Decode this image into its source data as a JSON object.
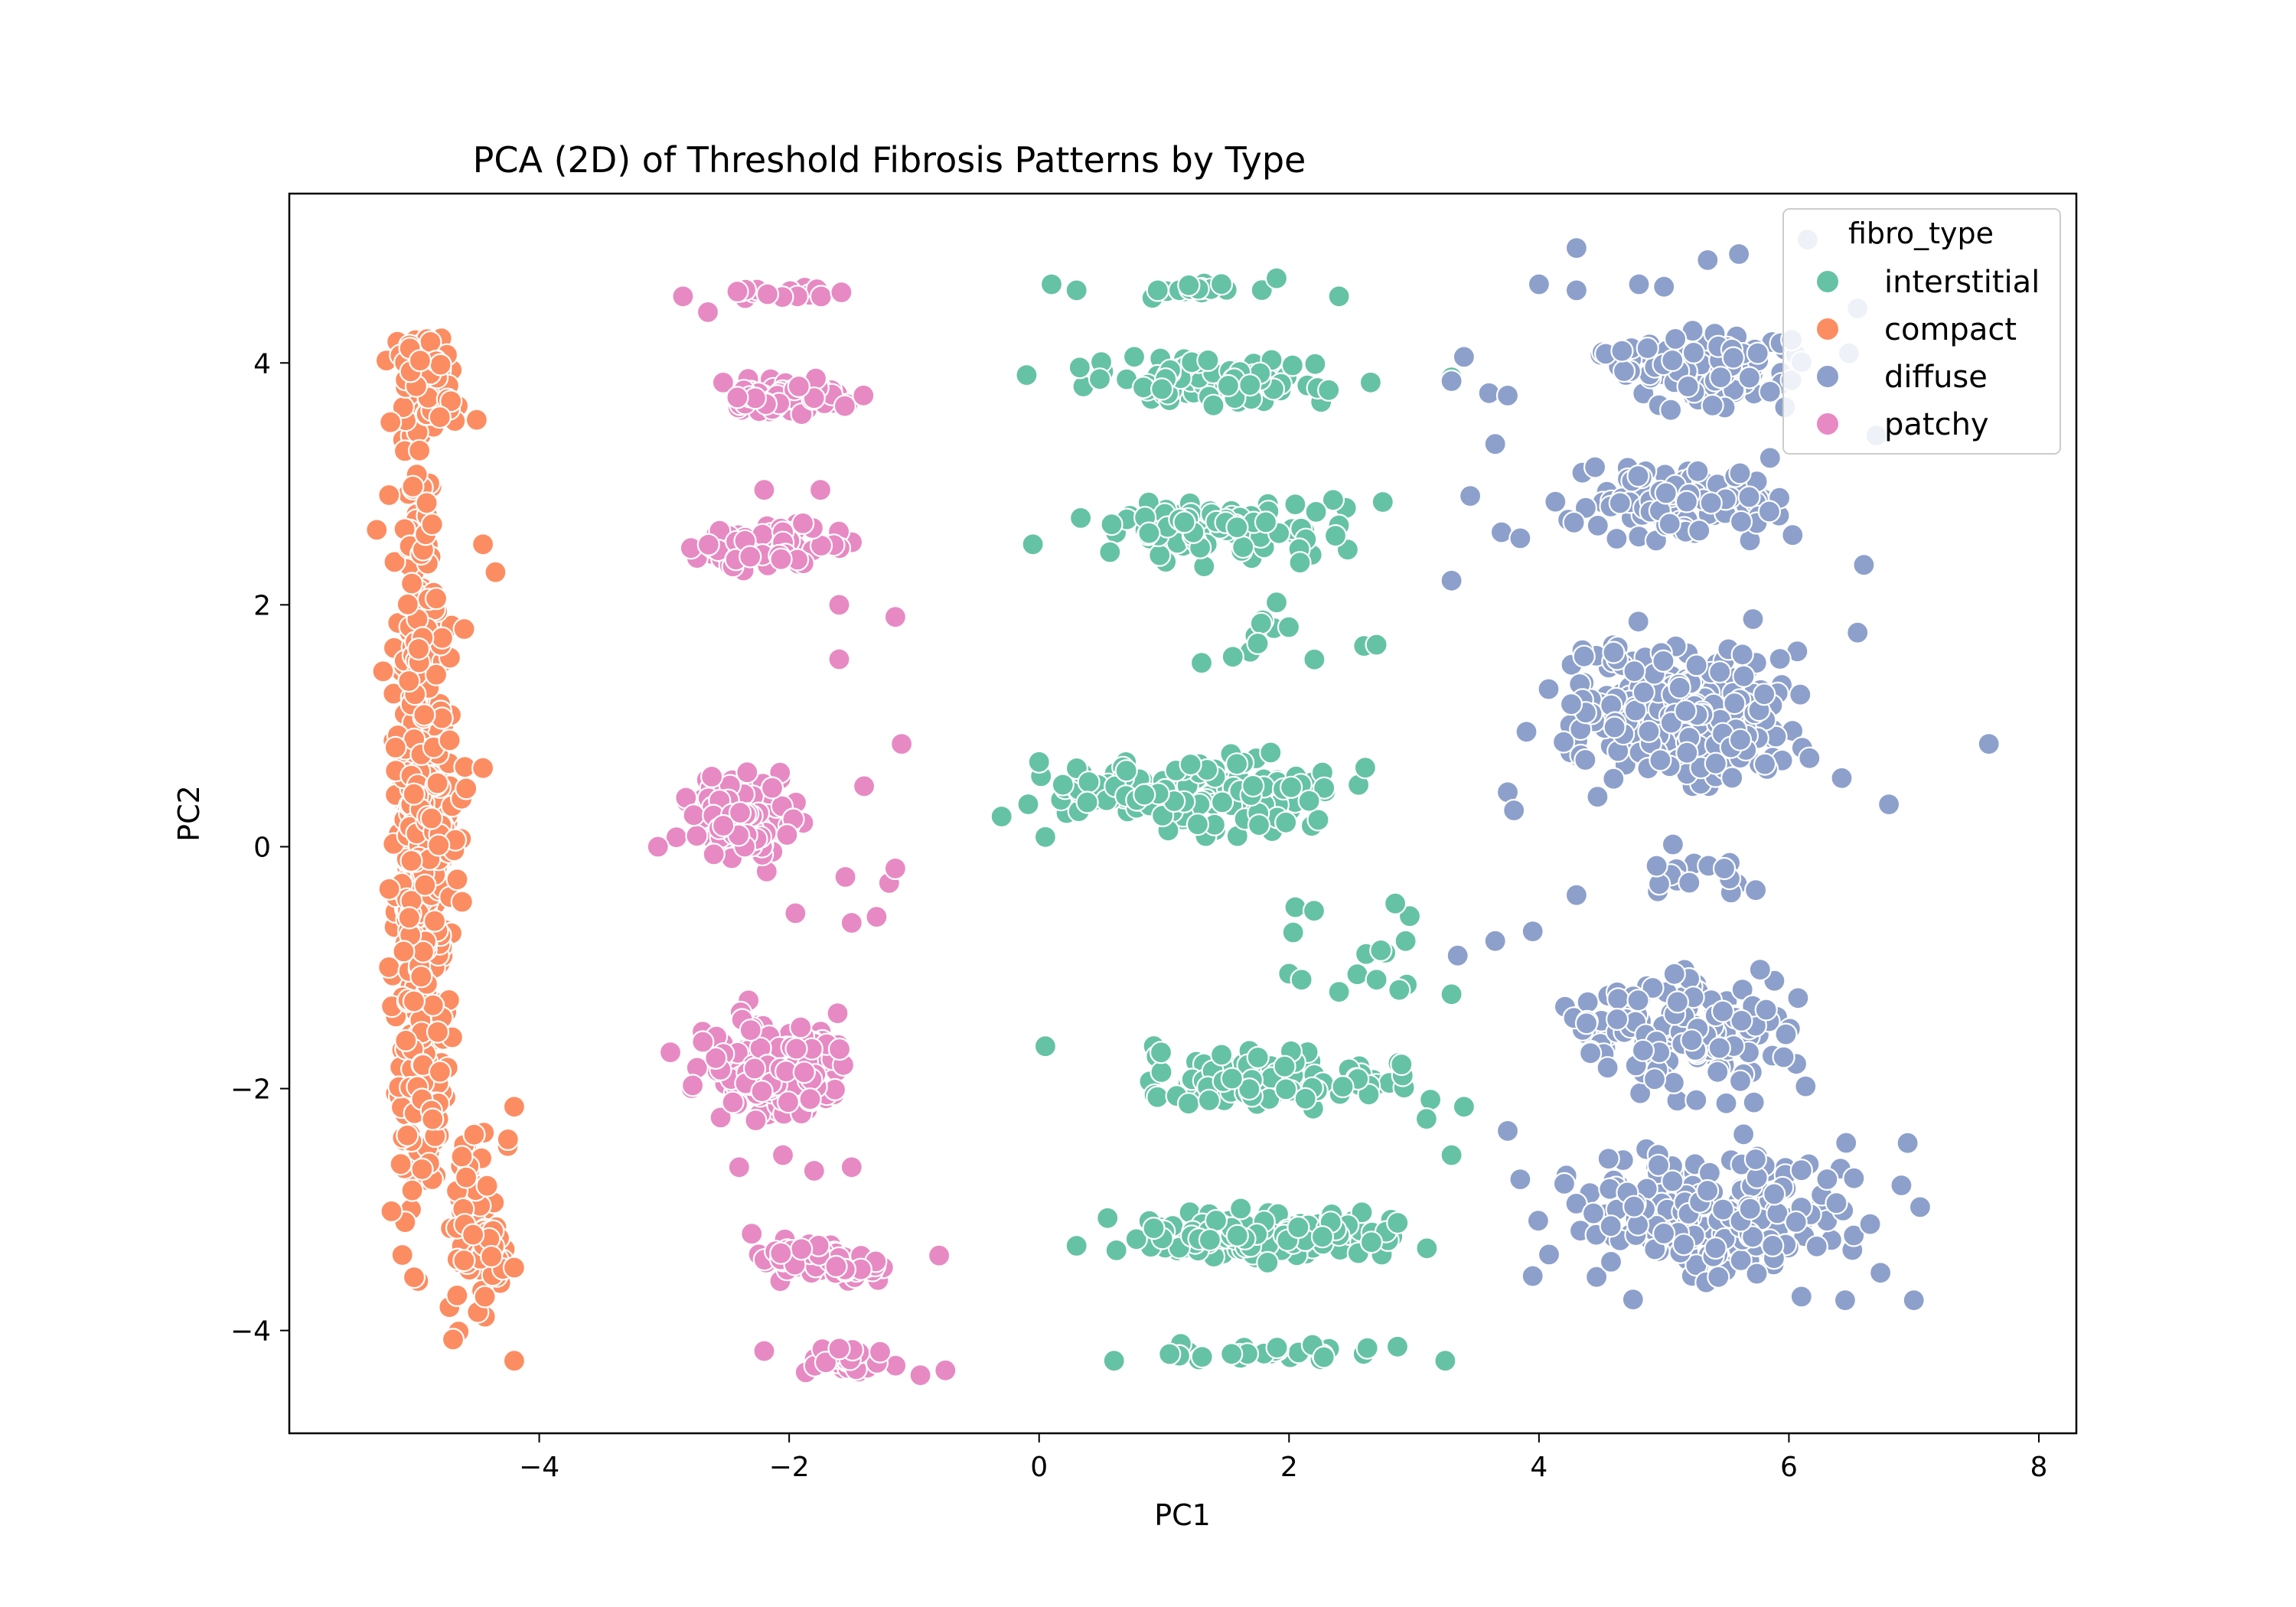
{
  "chart_data": {
    "type": "scatter",
    "title": "PCA (2D) of Threshold Fibrosis Patterns by Type",
    "xlabel": "PC1",
    "ylabel": "PC2",
    "xlim": [
      -6.0,
      8.3
    ],
    "ylim": [
      -4.85,
      5.4
    ],
    "xticks": [
      -4,
      -2,
      0,
      2,
      4,
      6,
      8
    ],
    "xtick_labels": [
      "−4",
      "−2",
      "0",
      "2",
      "4",
      "6",
      "8"
    ],
    "yticks": [
      -4,
      -2,
      0,
      2,
      4
    ],
    "ytick_labels": [
      "−4",
      "−2",
      "0",
      "2",
      "4"
    ],
    "grid": false,
    "legend": {
      "title": "fibro_type",
      "placement": "top-right"
    },
    "series": [
      {
        "name": "interstitial",
        "color": "#66c2a5",
        "clusters": [
          {
            "x": [
              0.1,
              2.4
            ],
            "y": [
              4.5,
              4.7
            ],
            "n": 18
          },
          {
            "x": [
              0.0,
              2.8
            ],
            "y": [
              3.6,
              4.1
            ],
            "n": 95
          },
          {
            "x": [
              0.0,
              2.8
            ],
            "y": [
              2.3,
              3.0
            ],
            "n": 90
          },
          {
            "x": [
              1.2,
              2.7
            ],
            "y": [
              1.5,
              2.0
            ],
            "n": 8
          },
          {
            "x": [
              -0.3,
              2.9
            ],
            "y": [
              -0.05,
              0.9
            ],
            "n": 140
          },
          {
            "x": [
              1.9,
              3.3
            ],
            "y": [
              -1.25,
              -0.45
            ],
            "n": 9
          },
          {
            "x": [
              0.1,
              3.4
            ],
            "y": [
              -2.3,
              -1.6
            ],
            "n": 95
          },
          {
            "x": [
              0.3,
              3.4
            ],
            "y": [
              -3.5,
              -2.95
            ],
            "n": 170
          },
          {
            "x": [
              0.6,
              3.3
            ],
            "y": [
              -4.3,
              -4.05
            ],
            "n": 28
          }
        ],
        "points": [
          {
            "x": 0.1,
            "y": 4.65
          },
          {
            "x": 0.3,
            "y": 4.6
          },
          {
            "x": 1.9,
            "y": 4.7
          },
          {
            "x": 2.4,
            "y": 4.55
          },
          {
            "x": -0.1,
            "y": 3.9
          },
          {
            "x": 3.3,
            "y": 3.88
          },
          {
            "x": -0.05,
            "y": 2.5
          },
          {
            "x": 2.75,
            "y": 2.85
          },
          {
            "x": 1.9,
            "y": 2.02
          },
          {
            "x": 1.3,
            "y": 1.52
          },
          {
            "x": 1.55,
            "y": 1.57
          },
          {
            "x": 1.75,
            "y": 1.68
          },
          {
            "x": 2.6,
            "y": 1.66
          },
          {
            "x": 2.7,
            "y": 1.67
          },
          {
            "x": -0.3,
            "y": 0.25
          },
          {
            "x": 0.05,
            "y": 0.08
          },
          {
            "x": 0.0,
            "y": 0.7
          },
          {
            "x": 2.05,
            "y": -0.5
          },
          {
            "x": 2.2,
            "y": -0.53
          },
          {
            "x": 2.85,
            "y": -0.47
          },
          {
            "x": 2.0,
            "y": -1.05
          },
          {
            "x": 2.1,
            "y": -1.1
          },
          {
            "x": 2.7,
            "y": -1.1
          },
          {
            "x": 3.3,
            "y": -1.22
          },
          {
            "x": 2.4,
            "y": -1.2
          },
          {
            "x": 0.05,
            "y": -1.65
          },
          {
            "x": 3.1,
            "y": -2.25
          },
          {
            "x": 3.4,
            "y": -2.15
          },
          {
            "x": 3.3,
            "y": -2.55
          },
          {
            "x": 0.3,
            "y": -3.3
          },
          {
            "x": 0.6,
            "y": -4.25
          },
          {
            "x": 3.25,
            "y": -4.25
          },
          {
            "x": 2.9,
            "y": -1.8
          }
        ]
      },
      {
        "name": "compact",
        "color": "#fc8d62",
        "clusters": [
          {
            "x": [
              -5.25,
              -4.65
            ],
            "y": [
              -4.25,
              4.55
            ],
            "n": 520
          },
          {
            "x": [
              -5.3,
              -4.45
            ],
            "y": [
              3.2,
              4.5
            ],
            "n": 60
          },
          {
            "x": [
              -5.2,
              -4.5
            ],
            "y": [
              -0.8,
              1.0
            ],
            "n": 60
          },
          {
            "x": [
              -4.8,
              -4.2
            ],
            "y": [
              -4.3,
              -2.1
            ],
            "n": 90
          }
        ],
        "points": [
          {
            "x": -4.5,
            "y": 3.53
          },
          {
            "x": -5.3,
            "y": 2.62
          },
          {
            "x": -4.45,
            "y": 2.5
          },
          {
            "x": -4.35,
            "y": 2.27
          },
          {
            "x": -4.6,
            "y": 1.8
          },
          {
            "x": -5.25,
            "y": 1.45
          },
          {
            "x": -4.45,
            "y": 0.65
          },
          {
            "x": -5.2,
            "y": -0.35
          },
          {
            "x": -4.2,
            "y": -2.15
          },
          {
            "x": -4.25,
            "y": -2.42
          },
          {
            "x": -4.2,
            "y": -3.48
          },
          {
            "x": -4.2,
            "y": -4.25
          },
          {
            "x": -5.15,
            "y": 0.82
          }
        ]
      },
      {
        "name": "diffuse",
        "color": "#8da0cb",
        "clusters": [
          {
            "x": [
              4.2,
              6.7
            ],
            "y": [
              3.5,
              4.4
            ],
            "n": 100
          },
          {
            "x": [
              3.9,
              6.3
            ],
            "y": [
              2.4,
              3.3
            ],
            "n": 110
          },
          {
            "x": [
              3.7,
              6.6
            ],
            "y": [
              0.2,
              2.0
            ],
            "n": 260
          },
          {
            "x": [
              4.7,
              5.9
            ],
            "y": [
              -0.6,
              0.2
            ],
            "n": 18
          },
          {
            "x": [
              3.8,
              6.5
            ],
            "y": [
              -2.3,
              -0.7
            ],
            "n": 150
          },
          {
            "x": [
              3.8,
              6.9
            ],
            "y": [
              -3.8,
              -2.3
            ],
            "n": 210
          }
        ],
        "points": [
          {
            "x": 4.3,
            "y": 4.95
          },
          {
            "x": 4.3,
            "y": 4.6
          },
          {
            "x": 4.0,
            "y": 4.65
          },
          {
            "x": 4.8,
            "y": 4.65
          },
          {
            "x": 5.0,
            "y": 4.63
          },
          {
            "x": 5.35,
            "y": 4.85
          },
          {
            "x": 5.6,
            "y": 4.9
          },
          {
            "x": 6.15,
            "y": 5.02
          },
          {
            "x": 3.4,
            "y": 4.05
          },
          {
            "x": 3.6,
            "y": 3.75
          },
          {
            "x": 3.75,
            "y": 3.73
          },
          {
            "x": 3.3,
            "y": 3.85
          },
          {
            "x": 3.65,
            "y": 3.33
          },
          {
            "x": 3.45,
            "y": 2.9
          },
          {
            "x": 3.7,
            "y": 2.6
          },
          {
            "x": 3.85,
            "y": 2.55
          },
          {
            "x": 3.3,
            "y": 2.2
          },
          {
            "x": 6.7,
            "y": 3.4
          },
          {
            "x": 6.6,
            "y": 2.33
          },
          {
            "x": 6.55,
            "y": 4.45
          },
          {
            "x": 7.6,
            "y": 0.85
          },
          {
            "x": 6.8,
            "y": 0.35
          },
          {
            "x": 6.55,
            "y": 1.77
          },
          {
            "x": 3.9,
            "y": 0.95
          },
          {
            "x": 3.75,
            "y": 0.45
          },
          {
            "x": 3.8,
            "y": 0.3
          },
          {
            "x": 3.35,
            "y": -0.9
          },
          {
            "x": 3.65,
            "y": -0.78
          },
          {
            "x": 3.95,
            "y": -0.7
          },
          {
            "x": 4.3,
            "y": -0.4
          },
          {
            "x": 3.75,
            "y": -2.35
          },
          {
            "x": 3.85,
            "y": -2.75
          },
          {
            "x": 3.95,
            "y": -3.55
          },
          {
            "x": 6.95,
            "y": -2.45
          },
          {
            "x": 6.9,
            "y": -2.8
          },
          {
            "x": 7.05,
            "y": -2.98
          },
          {
            "x": 7.0,
            "y": -3.75
          },
          {
            "x": 6.45,
            "y": -3.75
          },
          {
            "x": 6.65,
            "y": -3.12
          },
          {
            "x": 6.1,
            "y": -3.72
          }
        ]
      },
      {
        "name": "patchy",
        "color": "#e78ac3",
        "clusters": [
          {
            "x": [
              -2.6,
              -1.4
            ],
            "y": [
              4.5,
              4.65
            ],
            "n": 16
          },
          {
            "x": [
              -2.8,
              -1.3
            ],
            "y": [
              3.5,
              3.95
            ],
            "n": 70
          },
          {
            "x": [
              -2.9,
              -1.4
            ],
            "y": [
              2.2,
              2.75
            ],
            "n": 80
          },
          {
            "x": [
              -3.0,
              -1.7
            ],
            "y": [
              -0.3,
              0.8
            ],
            "n": 130
          },
          {
            "x": [
              -2.9,
              -1.25
            ],
            "y": [
              -2.4,
              -1.25
            ],
            "n": 200
          },
          {
            "x": [
              -2.4,
              -1.1
            ],
            "y": [
              -3.65,
              -3.2
            ],
            "n": 60
          },
          {
            "x": [
              -2.1,
              -1.0
            ],
            "y": [
              -4.4,
              -4.1
            ],
            "n": 25
          }
        ],
        "points": [
          {
            "x": -2.85,
            "y": 4.55
          },
          {
            "x": -2.65,
            "y": 4.42
          },
          {
            "x": -2.2,
            "y": 2.95
          },
          {
            "x": -1.75,
            "y": 2.95
          },
          {
            "x": -1.6,
            "y": 2.0
          },
          {
            "x": -1.15,
            "y": 1.9
          },
          {
            "x": -1.6,
            "y": 1.55
          },
          {
            "x": -1.1,
            "y": 0.85
          },
          {
            "x": -1.4,
            "y": 0.5
          },
          {
            "x": -3.05,
            "y": 0.0
          },
          {
            "x": -1.55,
            "y": -0.25
          },
          {
            "x": -1.2,
            "y": -0.3
          },
          {
            "x": -1.15,
            "y": -0.18
          },
          {
            "x": -1.95,
            "y": -0.55
          },
          {
            "x": -1.5,
            "y": -0.63
          },
          {
            "x": -1.3,
            "y": -0.58
          },
          {
            "x": -2.95,
            "y": -1.7
          },
          {
            "x": -2.4,
            "y": -2.65
          },
          {
            "x": -2.05,
            "y": -2.55
          },
          {
            "x": -1.8,
            "y": -2.68
          },
          {
            "x": -1.5,
            "y": -2.65
          },
          {
            "x": -2.3,
            "y": -3.2
          },
          {
            "x": -2.2,
            "y": -4.17
          },
          {
            "x": -0.8,
            "y": -3.38
          },
          {
            "x": -0.95,
            "y": -4.37
          },
          {
            "x": -0.75,
            "y": -4.33
          },
          {
            "x": -1.6,
            "y": -4.15
          }
        ]
      }
    ]
  }
}
